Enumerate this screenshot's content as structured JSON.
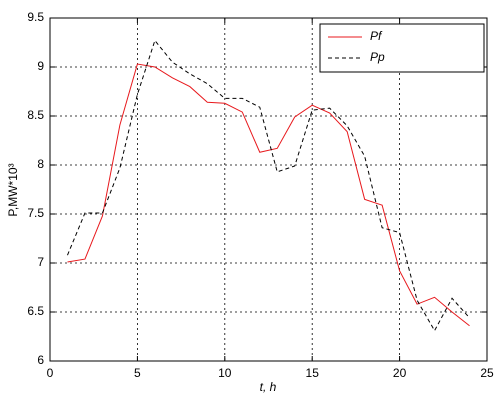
{
  "chart_data": {
    "type": "line",
    "xlabel": "t,  h",
    "ylabel": "P,MW*10³",
    "x": [
      1,
      2,
      3,
      4,
      5,
      6,
      7,
      8,
      9,
      10,
      11,
      12,
      13,
      14,
      15,
      16,
      17,
      18,
      19,
      20,
      21,
      22,
      23,
      24
    ],
    "series": [
      {
        "name": "Pf",
        "color": "#e8191d",
        "dash": "solid",
        "values": [
          7.01,
          7.04,
          7.48,
          8.41,
          9.03,
          9.0,
          8.89,
          8.8,
          8.64,
          8.63,
          8.54,
          8.13,
          8.17,
          8.49,
          8.61,
          8.53,
          8.34,
          7.65,
          7.59,
          6.92,
          6.58,
          6.65,
          6.5,
          6.36
        ]
      },
      {
        "name": "Pp",
        "color": "#000000",
        "dash": "dashed",
        "values": [
          7.08,
          7.51,
          7.51,
          7.97,
          8.72,
          9.27,
          9.05,
          8.93,
          8.83,
          8.68,
          8.68,
          8.59,
          7.93,
          7.99,
          8.56,
          8.58,
          8.4,
          8.09,
          7.36,
          7.31,
          6.62,
          6.31,
          6.64,
          6.44
        ]
      }
    ],
    "xlim": [
      0,
      25
    ],
    "xticks": [
      0,
      5,
      10,
      15,
      20,
      25
    ],
    "ylim": [
      6,
      9.5
    ],
    "yticks": [
      6,
      6.5,
      7,
      7.5,
      8,
      8.5,
      9,
      9.5
    ],
    "grid": true,
    "legend": "upper-right"
  }
}
